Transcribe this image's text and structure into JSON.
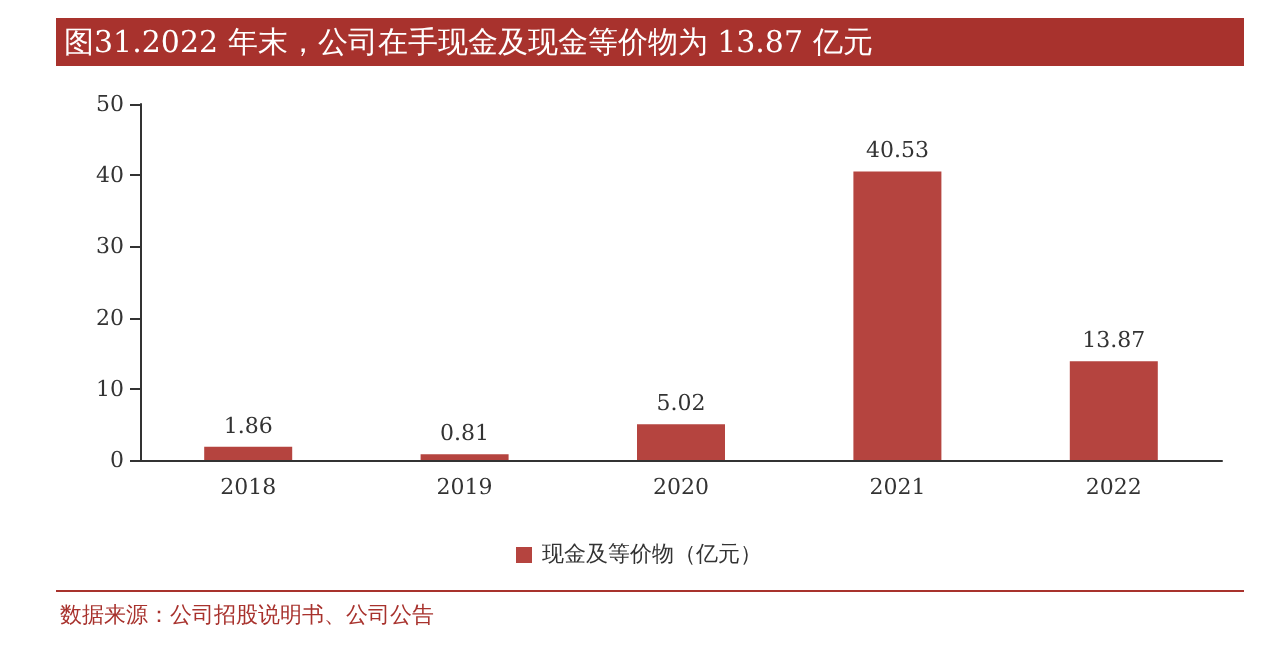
{
  "chart_data": {
    "type": "bar",
    "title": "图31.2022 年末，公司在手现金及现金等价物为 13.87 亿元",
    "categories": [
      "2018",
      "2019",
      "2020",
      "2021",
      "2022"
    ],
    "series": [
      {
        "name": "现金及等价物（亿元）",
        "color": "#b5443f",
        "values": [
          1.86,
          0.81,
          5.02,
          40.53,
          13.87
        ]
      }
    ],
    "ylim": [
      0,
      50
    ],
    "yticks": [
      0,
      10,
      20,
      30,
      40,
      50
    ],
    "grid": false,
    "legend": "bottom",
    "data_labels": true,
    "annotations": [
      "数据来源：公司招股说明书、公司公告"
    ]
  }
}
